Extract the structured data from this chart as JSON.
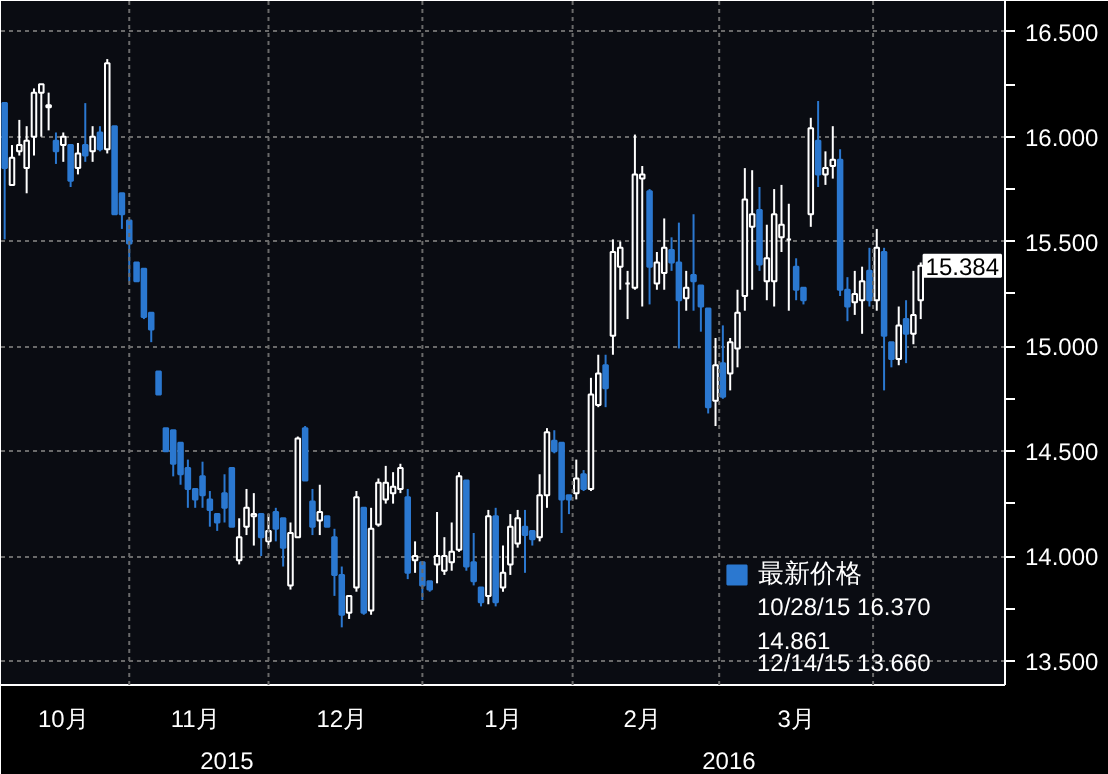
{
  "chart_data": {
    "type": "candlestick",
    "categories": [
      null,
      null,
      null,
      null,
      null,
      null,
      null,
      null,
      "10月",
      null,
      null,
      null,
      null,
      null,
      null,
      null,
      null,
      null,
      null,
      null,
      null,
      null,
      null,
      null,
      null,
      null,
      "11月",
      null,
      null,
      null,
      null,
      null,
      null,
      null,
      null,
      null,
      null,
      null,
      null,
      null,
      null,
      null,
      null,
      null,
      null,
      null,
      "12月",
      null,
      null,
      null,
      null,
      null,
      null,
      null,
      null,
      null,
      null,
      null,
      null,
      null,
      null,
      null,
      null,
      null,
      null,
      null,
      null,
      null,
      "1月",
      null,
      null,
      null,
      null,
      null,
      null,
      null,
      null,
      null,
      null,
      null,
      null,
      null,
      null,
      null,
      null,
      null,
      null,
      "2月",
      null,
      null,
      null,
      null,
      null,
      null,
      null,
      null,
      null,
      null,
      null,
      null,
      null,
      null,
      null,
      null,
      null,
      null,
      null,
      null,
      "3月",
      null,
      null,
      null,
      null,
      null,
      null,
      null,
      null,
      null,
      null,
      null,
      null,
      null,
      null,
      null,
      null,
      null
    ],
    "series": [
      {
        "name": "最新价格",
        "ohlc": [
          [
            16.16,
            16.16,
            15.51,
            15.85
          ],
          [
            15.77,
            15.96,
            15.77,
            15.9
          ],
          [
            15.93,
            16.08,
            15.91,
            15.96
          ],
          [
            15.85,
            16.05,
            15.73,
            15.98
          ],
          [
            16.0,
            16.23,
            15.91,
            16.21
          ],
          [
            16.21,
            16.25,
            16.0,
            16.25
          ],
          [
            16.14,
            16.21,
            16.03,
            16.15
          ],
          [
            15.98,
            16.02,
            15.87,
            15.93
          ],
          [
            15.96,
            16.02,
            15.88,
            16.0
          ],
          [
            15.96,
            15.96,
            15.76,
            15.79
          ],
          [
            15.85,
            15.97,
            15.82,
            15.92
          ],
          [
            15.96,
            16.16,
            15.88,
            15.91
          ],
          [
            15.93,
            16.05,
            15.88,
            16.0
          ],
          [
            16.02,
            16.05,
            15.93,
            15.94
          ],
          [
            15.94,
            16.37,
            15.92,
            16.35
          ],
          [
            16.05,
            16.05,
            15.63,
            15.63
          ],
          [
            15.73,
            15.73,
            15.56,
            15.63
          ],
          [
            15.6,
            15.6,
            15.31,
            15.49
          ],
          [
            15.4,
            15.4,
            15.31,
            15.31
          ],
          [
            15.37,
            15.37,
            15.13,
            15.14
          ],
          [
            15.16,
            15.16,
            15.02,
            15.08
          ],
          [
            14.88,
            14.88,
            14.77,
            14.77
          ],
          [
            14.61,
            14.61,
            14.5,
            14.5
          ],
          [
            14.6,
            14.6,
            14.38,
            14.44
          ],
          [
            14.54,
            14.54,
            14.34,
            14.39
          ],
          [
            14.42,
            14.46,
            14.23,
            14.32
          ],
          [
            14.32,
            14.32,
            14.23,
            14.27
          ],
          [
            14.38,
            14.45,
            14.23,
            14.29
          ],
          [
            14.27,
            14.31,
            14.14,
            14.22
          ],
          [
            14.2,
            14.2,
            14.12,
            14.16
          ],
          [
            14.3,
            14.39,
            14.16,
            14.23
          ],
          [
            14.42,
            14.42,
            14.14,
            14.14
          ],
          [
            13.98,
            14.18,
            13.96,
            14.09
          ],
          [
            14.14,
            14.32,
            14.1,
            14.23
          ],
          [
            14.19,
            14.3,
            14.05,
            14.2
          ],
          [
            14.2,
            14.2,
            14.0,
            14.09
          ],
          [
            14.07,
            14.2,
            14.04,
            14.12
          ],
          [
            14.21,
            14.23,
            14.07,
            14.13
          ],
          [
            14.18,
            14.18,
            13.95,
            14.04
          ],
          [
            13.86,
            14.16,
            13.84,
            14.11
          ],
          [
            14.09,
            14.57,
            14.09,
            14.56
          ],
          [
            14.61,
            14.62,
            14.36,
            14.36
          ],
          [
            14.26,
            14.32,
            14.1,
            14.14
          ],
          [
            14.17,
            14.34,
            14.1,
            14.21
          ],
          [
            14.19,
            14.19,
            14.14,
            14.14
          ],
          [
            14.09,
            14.13,
            13.81,
            13.91
          ],
          [
            13.91,
            13.95,
            13.66,
            13.72
          ],
          [
            13.73,
            13.81,
            13.7,
            13.81
          ],
          [
            13.85,
            14.31,
            13.83,
            14.28
          ],
          [
            14.23,
            14.23,
            13.72,
            13.73
          ],
          [
            13.74,
            14.23,
            13.72,
            14.13
          ],
          [
            14.15,
            14.37,
            14.14,
            14.35
          ],
          [
            14.27,
            14.43,
            14.25,
            14.35
          ],
          [
            14.3,
            14.4,
            14.25,
            14.33
          ],
          [
            14.32,
            14.44,
            14.3,
            14.42
          ],
          [
            14.28,
            14.32,
            13.89,
            13.92
          ],
          [
            13.98,
            14.07,
            13.92,
            14.0
          ],
          [
            13.97,
            13.97,
            13.79,
            13.86
          ],
          [
            13.88,
            13.88,
            13.83,
            13.84
          ],
          [
            13.96,
            14.21,
            13.87,
            14.0
          ],
          [
            13.93,
            14.09,
            13.91,
            14.0
          ],
          [
            13.97,
            14.16,
            13.93,
            14.02
          ],
          [
            14.03,
            14.4,
            14.02,
            14.38
          ],
          [
            14.36,
            14.36,
            13.93,
            13.95
          ],
          [
            13.97,
            14.11,
            13.86,
            13.88
          ],
          [
            13.85,
            13.85,
            13.76,
            13.78
          ],
          [
            13.81,
            14.22,
            13.77,
            14.19
          ],
          [
            14.19,
            14.23,
            13.76,
            13.78
          ],
          [
            13.85,
            14.05,
            13.83,
            13.92
          ],
          [
            13.96,
            14.2,
            13.91,
            14.14
          ],
          [
            14.06,
            14.22,
            14.04,
            14.18
          ],
          [
            14.14,
            14.22,
            13.92,
            14.1
          ],
          [
            14.12,
            14.12,
            14.05,
            14.08
          ],
          [
            14.09,
            14.39,
            14.07,
            14.29
          ],
          [
            14.29,
            14.61,
            14.23,
            14.59
          ],
          [
            14.55,
            14.6,
            14.49,
            14.5
          ],
          [
            14.54,
            14.54,
            14.11,
            14.27
          ],
          [
            14.29,
            14.29,
            14.2,
            14.27
          ],
          [
            14.3,
            14.46,
            14.27,
            14.37
          ],
          [
            14.39,
            14.41,
            14.31,
            14.32
          ],
          [
            14.32,
            14.85,
            14.31,
            14.77
          ],
          [
            14.72,
            14.96,
            14.71,
            14.87
          ],
          [
            14.91,
            14.96,
            14.71,
            14.8
          ],
          [
            15.05,
            15.51,
            14.96,
            15.45
          ],
          [
            15.38,
            15.5,
            15.27,
            15.47
          ],
          [
            15.3,
            15.36,
            15.13,
            15.3
          ],
          [
            15.28,
            16.01,
            15.27,
            15.82
          ],
          [
            15.8,
            15.86,
            15.19,
            15.82
          ],
          [
            15.74,
            15.75,
            15.2,
            15.38
          ],
          [
            15.3,
            15.45,
            15.27,
            15.4
          ],
          [
            15.35,
            15.61,
            15.27,
            15.47
          ],
          [
            15.46,
            15.52,
            15.36,
            15.4
          ],
          [
            15.4,
            15.59,
            14.99,
            15.22
          ],
          [
            15.23,
            15.36,
            15.17,
            15.28
          ],
          [
            15.34,
            15.63,
            15.17,
            15.31
          ],
          [
            15.29,
            15.29,
            15.07,
            15.19
          ],
          [
            15.18,
            15.18,
            14.68,
            14.71
          ],
          [
            14.74,
            15.04,
            14.62,
            14.91
          ],
          [
            14.92,
            15.1,
            14.75,
            14.76
          ],
          [
            14.87,
            15.04,
            14.79,
            15.02
          ],
          [
            14.99,
            15.27,
            14.9,
            15.16
          ],
          [
            15.24,
            15.85,
            15.17,
            15.7
          ],
          [
            15.57,
            15.84,
            15.27,
            15.63
          ],
          [
            15.65,
            15.76,
            15.36,
            15.39
          ],
          [
            15.31,
            15.58,
            15.22,
            15.42
          ],
          [
            15.31,
            15.75,
            15.19,
            15.63
          ],
          [
            15.52,
            15.77,
            15.45,
            15.58
          ],
          [
            15.51,
            15.68,
            15.17,
            15.51
          ],
          [
            15.38,
            15.42,
            15.22,
            15.27
          ],
          [
            15.28,
            15.28,
            15.2,
            15.22
          ],
          [
            15.63,
            16.09,
            15.57,
            16.04
          ],
          [
            15.98,
            16.17,
            15.76,
            15.82
          ],
          [
            15.82,
            15.93,
            15.77,
            15.85
          ],
          [
            15.86,
            16.05,
            15.8,
            15.89
          ],
          [
            15.89,
            15.94,
            15.24,
            15.27
          ],
          [
            15.27,
            15.33,
            15.12,
            15.19
          ],
          [
            15.21,
            15.36,
            15.15,
            15.25
          ],
          [
            15.22,
            15.38,
            15.06,
            15.31
          ],
          [
            15.36,
            15.47,
            15.19,
            15.22
          ],
          [
            15.22,
            15.56,
            15.17,
            15.47
          ],
          [
            15.45,
            15.47,
            14.79,
            15.05
          ],
          [
            15.02,
            15.02,
            14.9,
            14.94
          ],
          [
            14.94,
            15.19,
            14.91,
            15.1
          ],
          [
            15.13,
            15.22,
            14.92,
            15.06
          ],
          [
            15.06,
            15.36,
            15.01,
            15.15
          ],
          [
            15.22,
            15.4,
            15.13,
            15.384
          ]
        ],
        "colors": [
          "#2b78d0",
          "#ffffff",
          "#ffffff",
          "#ffffff",
          "#ffffff",
          "#ffffff",
          "#ffffff",
          "#2b78d0",
          "#ffffff",
          "#2b78d0",
          "#ffffff",
          "#2b78d0",
          "#ffffff",
          "#2b78d0",
          "#ffffff",
          "#2b78d0",
          "#2b78d0",
          "#2b78d0",
          "#2b78d0",
          "#2b78d0",
          "#2b78d0",
          "#2b78d0",
          "#2b78d0",
          "#2b78d0",
          "#2b78d0",
          "#2b78d0",
          "#2b78d0",
          "#2b78d0",
          "#2b78d0",
          "#2b78d0",
          "#2b78d0",
          "#2b78d0",
          "#ffffff",
          "#ffffff",
          "#ffffff",
          "#2b78d0",
          "#ffffff",
          "#2b78d0",
          "#2b78d0",
          "#ffffff",
          "#ffffff",
          "#2b78d0",
          "#2b78d0",
          "#ffffff",
          "#2b78d0",
          "#2b78d0",
          "#2b78d0",
          "#ffffff",
          "#ffffff",
          "#2b78d0",
          "#ffffff",
          "#ffffff",
          "#ffffff",
          "#ffffff",
          "#ffffff",
          "#2b78d0",
          "#ffffff",
          "#2b78d0",
          "#2b78d0",
          "#ffffff",
          "#ffffff",
          "#ffffff",
          "#ffffff",
          "#2b78d0",
          "#2b78d0",
          "#2b78d0",
          "#ffffff",
          "#2b78d0",
          "#ffffff",
          "#ffffff",
          "#ffffff",
          "#2b78d0",
          "#2b78d0",
          "#ffffff",
          "#ffffff",
          "#2b78d0",
          "#2b78d0",
          "#2b78d0",
          "#ffffff",
          "#2b78d0",
          "#ffffff",
          "#ffffff",
          "#2b78d0",
          "#ffffff",
          "#ffffff",
          "#ffffff",
          "#ffffff",
          "#ffffff",
          "#2b78d0",
          "#ffffff",
          "#ffffff",
          "#2b78d0",
          "#2b78d0",
          "#ffffff",
          "#2b78d0",
          "#2b78d0",
          "#2b78d0",
          "#ffffff",
          "#2b78d0",
          "#ffffff",
          "#ffffff",
          "#ffffff",
          "#ffffff",
          "#2b78d0",
          "#ffffff",
          "#ffffff",
          "#ffffff",
          "#ffffff",
          "#2b78d0",
          "#2b78d0",
          "#ffffff",
          "#2b78d0",
          "#ffffff",
          "#ffffff",
          "#2b78d0",
          "#2b78d0",
          "#ffffff",
          "#ffffff",
          "#2b78d0",
          "#ffffff",
          "#2b78d0",
          "#2b78d0",
          "#ffffff",
          "#2b78d0",
          "#ffffff",
          "#ffffff"
        ]
      }
    ],
    "ylim": [
      13.385,
      16.647
    ],
    "yticks": [
      {
        "value": 13.5,
        "label": "13.500"
      },
      {
        "value": 14.0,
        "label": "14.000"
      },
      {
        "value": 14.5,
        "label": "14.500"
      },
      {
        "value": 15.0,
        "label": "15.000"
      },
      {
        "value": 15.5,
        "label": "15.500"
      },
      {
        "value": 16.0,
        "label": "16.000"
      },
      {
        "value": 16.5,
        "label": "16.500"
      }
    ],
    "grid": true,
    "legend": "bottom right",
    "annotations": [
      "10/28/15 16.370",
      "14.861",
      "12/14/15 13.660",
      "15.384",
      "2015",
      "2016"
    ]
  }
}
